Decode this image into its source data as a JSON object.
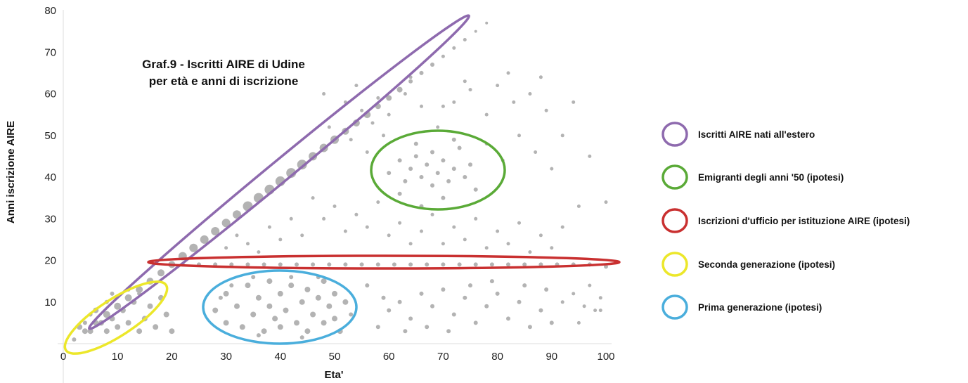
{
  "chart_data": {
    "type": "scatter",
    "title_lines": [
      "Graf.9 - Iscritti AIRE di Udine",
      "per età e anni di iscrizione"
    ],
    "xlabel": "Eta'",
    "ylabel": "Anni iscrizione AIRE",
    "xlim": [
      0,
      100
    ],
    "ylim": [
      0,
      80
    ],
    "x_ticks": [
      "0",
      "10",
      "20",
      "30",
      "40",
      "50",
      "60",
      "70",
      "80",
      "90",
      "100"
    ],
    "y_ticks": [
      "80",
      "70",
      "60",
      "50",
      "40",
      "30",
      "20",
      "10"
    ],
    "grid": false,
    "point_color": "#b3b3b3",
    "series": [
      {
        "points": [
          [
            2,
            1,
            3
          ],
          [
            4,
            3,
            4
          ],
          [
            6,
            5,
            4
          ],
          [
            8,
            7,
            5
          ],
          [
            10,
            9,
            5
          ],
          [
            12,
            11,
            5
          ],
          [
            14,
            13,
            5
          ],
          [
            16,
            15,
            5
          ],
          [
            18,
            17,
            5
          ],
          [
            20,
            19,
            5
          ],
          [
            22,
            21,
            6
          ],
          [
            24,
            23,
            6
          ],
          [
            26,
            25,
            6
          ],
          [
            28,
            27,
            6
          ],
          [
            30,
            29,
            6
          ],
          [
            32,
            31,
            6
          ],
          [
            34,
            33,
            7
          ],
          [
            36,
            35,
            7
          ],
          [
            38,
            37,
            7
          ],
          [
            40,
            39,
            7
          ],
          [
            42,
            41,
            7
          ],
          [
            44,
            43,
            7
          ],
          [
            46,
            45,
            6
          ],
          [
            48,
            47,
            6
          ],
          [
            50,
            49,
            6
          ],
          [
            52,
            51,
            5
          ],
          [
            54,
            53,
            5
          ],
          [
            56,
            55,
            5
          ],
          [
            58,
            57,
            4
          ],
          [
            60,
            59,
            4
          ],
          [
            62,
            61,
            4
          ],
          [
            64,
            63,
            3
          ],
          [
            66,
            65,
            3
          ],
          [
            68,
            67,
            3
          ],
          [
            70,
            69,
            2.5
          ],
          [
            72,
            71,
            2.5
          ],
          [
            74,
            73,
            2.5
          ],
          [
            76,
            75,
            2
          ],
          [
            78,
            77,
            2
          ],
          [
            3,
            4,
            4
          ],
          [
            5,
            3,
            4
          ],
          [
            6,
            8,
            4
          ],
          [
            7,
            5,
            4
          ],
          [
            8,
            3,
            4
          ],
          [
            9,
            6,
            4
          ],
          [
            10,
            4,
            4
          ],
          [
            11,
            8,
            4
          ],
          [
            12,
            5,
            4
          ],
          [
            13,
            10,
            4
          ],
          [
            14,
            3,
            4
          ],
          [
            15,
            6,
            4
          ],
          [
            16,
            9,
            4
          ],
          [
            17,
            4,
            4
          ],
          [
            18,
            11,
            4
          ],
          [
            19,
            7,
            4
          ],
          [
            20,
            3,
            4
          ],
          [
            8,
            10,
            3
          ],
          [
            9,
            12,
            3
          ],
          [
            12,
            13,
            3
          ],
          [
            14,
            12,
            3
          ],
          [
            5,
            7,
            3
          ],
          [
            4,
            5,
            3
          ],
          [
            28,
            8,
            4
          ],
          [
            30,
            5,
            4
          ],
          [
            30,
            12,
            4
          ],
          [
            32,
            9,
            4
          ],
          [
            33,
            4,
            4
          ],
          [
            34,
            14,
            4
          ],
          [
            35,
            7,
            4
          ],
          [
            36,
            11,
            4
          ],
          [
            37,
            3,
            4
          ],
          [
            38,
            9,
            4
          ],
          [
            38,
            15,
            4
          ],
          [
            39,
            6,
            4
          ],
          [
            40,
            12,
            4
          ],
          [
            40,
            4,
            4
          ],
          [
            41,
            8,
            4
          ],
          [
            42,
            14,
            4
          ],
          [
            43,
            5,
            4
          ],
          [
            44,
            10,
            4
          ],
          [
            45,
            3,
            4
          ],
          [
            45,
            13,
            4
          ],
          [
            46,
            7,
            4
          ],
          [
            47,
            11,
            4
          ],
          [
            48,
            5,
            4
          ],
          [
            48,
            15,
            4
          ],
          [
            49,
            9,
            4
          ],
          [
            50,
            6,
            4
          ],
          [
            50,
            12,
            4
          ],
          [
            51,
            3,
            4
          ],
          [
            52,
            10,
            4
          ],
          [
            31,
            14,
            3
          ],
          [
            35,
            16,
            3
          ],
          [
            42,
            16,
            3
          ],
          [
            47,
            16,
            3
          ],
          [
            29,
            11,
            3
          ],
          [
            53,
            7,
            3
          ],
          [
            36,
            2,
            3
          ],
          [
            44,
            1.5,
            3
          ],
          [
            60,
            8,
            3
          ],
          [
            62,
            10,
            3
          ],
          [
            64,
            6,
            3
          ],
          [
            66,
            12,
            3
          ],
          [
            68,
            9,
            3
          ],
          [
            70,
            13,
            3
          ],
          [
            72,
            7,
            3
          ],
          [
            74,
            11,
            3
          ],
          [
            76,
            5,
            3
          ],
          [
            78,
            9,
            3
          ],
          [
            80,
            12,
            3
          ],
          [
            82,
            6,
            3
          ],
          [
            84,
            10,
            3
          ],
          [
            86,
            4,
            3
          ],
          [
            88,
            8,
            3
          ],
          [
            90,
            5,
            3
          ],
          [
            56,
            14,
            3
          ],
          [
            58,
            4,
            3
          ],
          [
            59,
            11,
            3
          ],
          [
            63,
            3,
            3
          ],
          [
            67,
            4,
            3
          ],
          [
            71,
            3,
            3
          ],
          [
            75,
            14,
            3
          ],
          [
            79,
            15,
            3
          ],
          [
            85,
            14,
            3
          ],
          [
            89,
            13,
            3
          ],
          [
            22,
            19,
            3
          ],
          [
            25,
            19,
            3
          ],
          [
            28,
            19,
            3
          ],
          [
            31,
            19,
            3
          ],
          [
            34,
            19,
            3
          ],
          [
            37,
            19,
            3
          ],
          [
            40,
            19,
            3
          ],
          [
            43,
            19,
            3
          ],
          [
            46,
            19,
            3
          ],
          [
            49,
            19,
            3
          ],
          [
            52,
            19,
            3
          ],
          [
            55,
            19,
            3
          ],
          [
            58,
            19,
            3
          ],
          [
            61,
            19,
            3
          ],
          [
            64,
            19,
            3
          ],
          [
            67,
            19,
            3
          ],
          [
            70,
            19,
            3
          ],
          [
            73,
            19,
            3
          ],
          [
            76,
            19,
            3
          ],
          [
            79,
            19,
            3
          ],
          [
            82,
            19,
            3
          ],
          [
            85,
            19,
            3
          ],
          [
            88,
            19,
            3
          ],
          [
            91,
            19,
            3
          ],
          [
            94,
            19,
            3
          ],
          [
            97,
            19,
            3
          ],
          [
            100,
            18.5,
            3
          ],
          [
            60,
            41,
            3
          ],
          [
            62,
            44,
            3
          ],
          [
            63,
            39,
            3
          ],
          [
            64,
            42,
            3
          ],
          [
            65,
            45,
            3
          ],
          [
            66,
            40,
            3
          ],
          [
            67,
            43,
            3
          ],
          [
            68,
            38,
            3
          ],
          [
            68,
            46,
            3
          ],
          [
            69,
            41,
            3
          ],
          [
            70,
            44,
            3
          ],
          [
            71,
            39,
            3
          ],
          [
            72,
            42,
            3
          ],
          [
            73,
            47,
            3
          ],
          [
            74,
            40,
            3
          ],
          [
            75,
            43,
            3
          ],
          [
            76,
            37,
            3
          ],
          [
            62,
            36,
            3
          ],
          [
            65,
            48,
            3
          ],
          [
            70,
            35,
            3
          ],
          [
            72,
            49,
            3
          ],
          [
            66,
            33,
            3
          ],
          [
            48,
            60,
            2.5
          ],
          [
            52,
            58,
            2.5
          ],
          [
            55,
            56,
            2.5
          ],
          [
            57,
            53,
            2.5
          ],
          [
            60,
            55,
            2.5
          ],
          [
            63,
            60,
            2.5
          ],
          [
            66,
            57,
            2.5
          ],
          [
            69,
            52,
            2.5
          ],
          [
            72,
            58,
            2.5
          ],
          [
            75,
            61,
            2.5
          ],
          [
            78,
            55,
            2.5
          ],
          [
            80,
            62,
            2.5
          ],
          [
            83,
            58,
            2.5
          ],
          [
            86,
            60,
            2.5
          ],
          [
            89,
            56,
            2.5
          ],
          [
            49,
            52,
            2.5
          ],
          [
            53,
            49,
            2.5
          ],
          [
            56,
            46,
            2.5
          ],
          [
            59,
            50,
            2.5
          ],
          [
            78,
            48,
            2.5
          ],
          [
            81,
            44,
            2.5
          ],
          [
            84,
            50,
            2.5
          ],
          [
            87,
            46,
            2.5
          ],
          [
            90,
            42,
            2.5
          ],
          [
            92,
            50,
            2.5
          ],
          [
            94,
            58,
            2.5
          ],
          [
            97,
            45,
            2.5
          ],
          [
            46,
            35,
            2.5
          ],
          [
            48,
            30,
            2.5
          ],
          [
            50,
            33,
            2.5
          ],
          [
            52,
            27,
            2.5
          ],
          [
            54,
            31,
            2.5
          ],
          [
            56,
            28,
            2.5
          ],
          [
            58,
            34,
            2.5
          ],
          [
            60,
            26,
            2.5
          ],
          [
            62,
            29,
            2.5
          ],
          [
            64,
            24,
            2.5
          ],
          [
            66,
            27,
            2.5
          ],
          [
            68,
            31,
            2.5
          ],
          [
            70,
            24,
            2.5
          ],
          [
            72,
            28,
            2.5
          ],
          [
            74,
            25,
            2.5
          ],
          [
            76,
            30,
            2.5
          ],
          [
            78,
            23,
            2.5
          ],
          [
            80,
            27,
            2.5
          ],
          [
            82,
            24,
            2.5
          ],
          [
            84,
            29,
            2.5
          ],
          [
            86,
            22,
            2.5
          ],
          [
            88,
            26,
            2.5
          ],
          [
            90,
            23,
            2.5
          ],
          [
            92,
            28,
            2.5
          ],
          [
            38,
            28,
            2.5
          ],
          [
            40,
            25,
            2.5
          ],
          [
            42,
            30,
            2.5
          ],
          [
            44,
            26,
            2.5
          ],
          [
            36,
            22,
            2.5
          ],
          [
            34,
            24,
            2.5
          ],
          [
            32,
            26,
            2.5
          ],
          [
            30,
            23,
            2.5
          ],
          [
            92,
            10,
            2.5
          ],
          [
            94,
            12,
            2.5
          ],
          [
            96,
            9,
            2.5
          ],
          [
            98,
            8,
            2.5
          ],
          [
            99,
            11,
            2.5
          ],
          [
            95,
            5,
            2.5
          ],
          [
            97,
            14,
            2.5
          ],
          [
            100,
            34,
            2.5
          ],
          [
            95,
            33,
            2.5
          ],
          [
            99,
            8,
            2.5
          ],
          [
            54,
            62,
            2.5
          ],
          [
            58,
            59,
            2.5
          ],
          [
            64,
            64,
            2.5
          ],
          [
            70,
            57,
            2.5
          ],
          [
            74,
            63,
            2.5
          ],
          [
            82,
            65,
            2.5
          ],
          [
            88,
            64,
            2.5
          ]
        ]
      }
    ],
    "annotations": [
      {
        "label": "Iscritti AIRE nati all'estero",
        "color": "#8e6aae"
      },
      {
        "label": "Emigranti degli anni '50 (ipotesi)",
        "color": "#5aaa37"
      },
      {
        "label": "Iscrizioni d'ufficio per istituzione AIRE (ipotesi)",
        "color": "#c93030"
      },
      {
        "label": "Seconda generazione (ipotesi)",
        "color": "#ece72a"
      },
      {
        "label": "Prima generazione (ipotesi)",
        "color": "#4aaedc"
      }
    ],
    "legend_position": "right"
  }
}
